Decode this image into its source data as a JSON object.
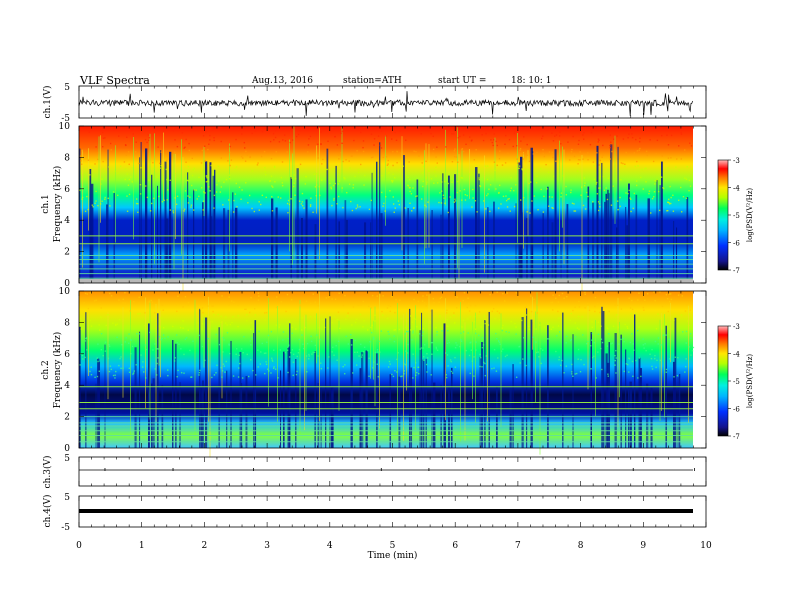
{
  "header": {
    "title": "VLF  Spectra",
    "date": "Aug.13, 2016",
    "station": "station=ATH",
    "start_label": "start  UT  =",
    "start_value": "18: 10: 1"
  },
  "chart_data": [
    {
      "type": "line",
      "panel": "ch1-waveform",
      "ylabel": "ch.1(V)",
      "ylim": [
        -5,
        5
      ],
      "yticks": [
        "5",
        "-5"
      ],
      "xlim": [
        0,
        10
      ],
      "xticks": [
        "0",
        "1",
        "2",
        "3",
        "4",
        "5",
        "6",
        "7",
        "8",
        "9",
        "10"
      ]
    },
    {
      "type": "heatmap",
      "panel": "ch1-spectrogram",
      "ylabel_top": "ch.1",
      "ylabel": "Frequency  (kHz)",
      "ylim": [
        0,
        10
      ],
      "yticks": [
        "0",
        "2",
        "4",
        "6",
        "8",
        "10"
      ],
      "xlim": [
        0,
        10
      ],
      "colorbar": {
        "label": "log(PSD(V²/Hz)",
        "range": [
          -7,
          -3
        ],
        "ticks": [
          "-3",
          "-4",
          "-5",
          "-6",
          "-7"
        ]
      }
    },
    {
      "type": "heatmap",
      "panel": "ch2-spectrogram",
      "ylabel_top": "ch.2",
      "ylabel": "Frequency  (kHz)",
      "ylim": [
        0,
        10
      ],
      "yticks": [
        "0",
        "2",
        "4",
        "6",
        "8",
        "10"
      ],
      "xlim": [
        0,
        10
      ],
      "colorbar": {
        "label": "log(PSD(V²/Hz)",
        "range": [
          -7,
          -3
        ],
        "ticks": [
          "-3",
          "-4",
          "-5",
          "-6",
          "-7"
        ]
      }
    },
    {
      "type": "line",
      "panel": "ch3-waveform",
      "ylabel": "ch.3(V)",
      "ylim": [
        -5,
        5
      ],
      "yticks": [
        "5"
      ],
      "xlim": [
        0,
        10
      ]
    },
    {
      "type": "line",
      "panel": "ch4-waveform",
      "ylabel": "ch.4(V)",
      "ylim": [
        -5,
        5
      ],
      "yticks": [
        "5",
        "-5"
      ],
      "xlim": [
        0,
        10
      ],
      "xlabel": "Time  (min)",
      "xticks": [
        "0",
        "1",
        "2",
        "3",
        "4",
        "5",
        "6",
        "7",
        "8",
        "9",
        "10"
      ]
    }
  ],
  "colors": {
    "scale": [
      "#000000",
      "#1a1aa8",
      "#0026ff",
      "#00a8ff",
      "#00f0f0",
      "#00ff66",
      "#b8ff00",
      "#ffe600",
      "#ff8c00",
      "#ff0000",
      "#ff9a9a",
      "#ffffff"
    ]
  }
}
